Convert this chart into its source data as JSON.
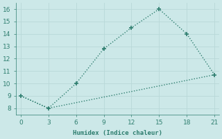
{
  "line1_x": [
    0,
    3,
    6,
    9,
    12,
    15,
    18,
    21
  ],
  "line1_y": [
    9.0,
    8.0,
    10.0,
    12.8,
    14.5,
    16.0,
    14.0,
    10.7
  ],
  "line2_x": [
    0,
    3,
    21
  ],
  "line2_y": [
    9.0,
    8.0,
    10.7
  ],
  "color": "#2d7d6e",
  "bg_color": "#cce8e8",
  "grid_color": "#b8d8d8",
  "xlabel": "Humidex (Indice chaleur)",
  "xlim": [
    -0.5,
    21.5
  ],
  "ylim": [
    7.5,
    16.5
  ],
  "xticks": [
    0,
    3,
    6,
    9,
    12,
    15,
    18,
    21
  ],
  "yticks": [
    8,
    9,
    10,
    11,
    12,
    13,
    14,
    15,
    16
  ]
}
